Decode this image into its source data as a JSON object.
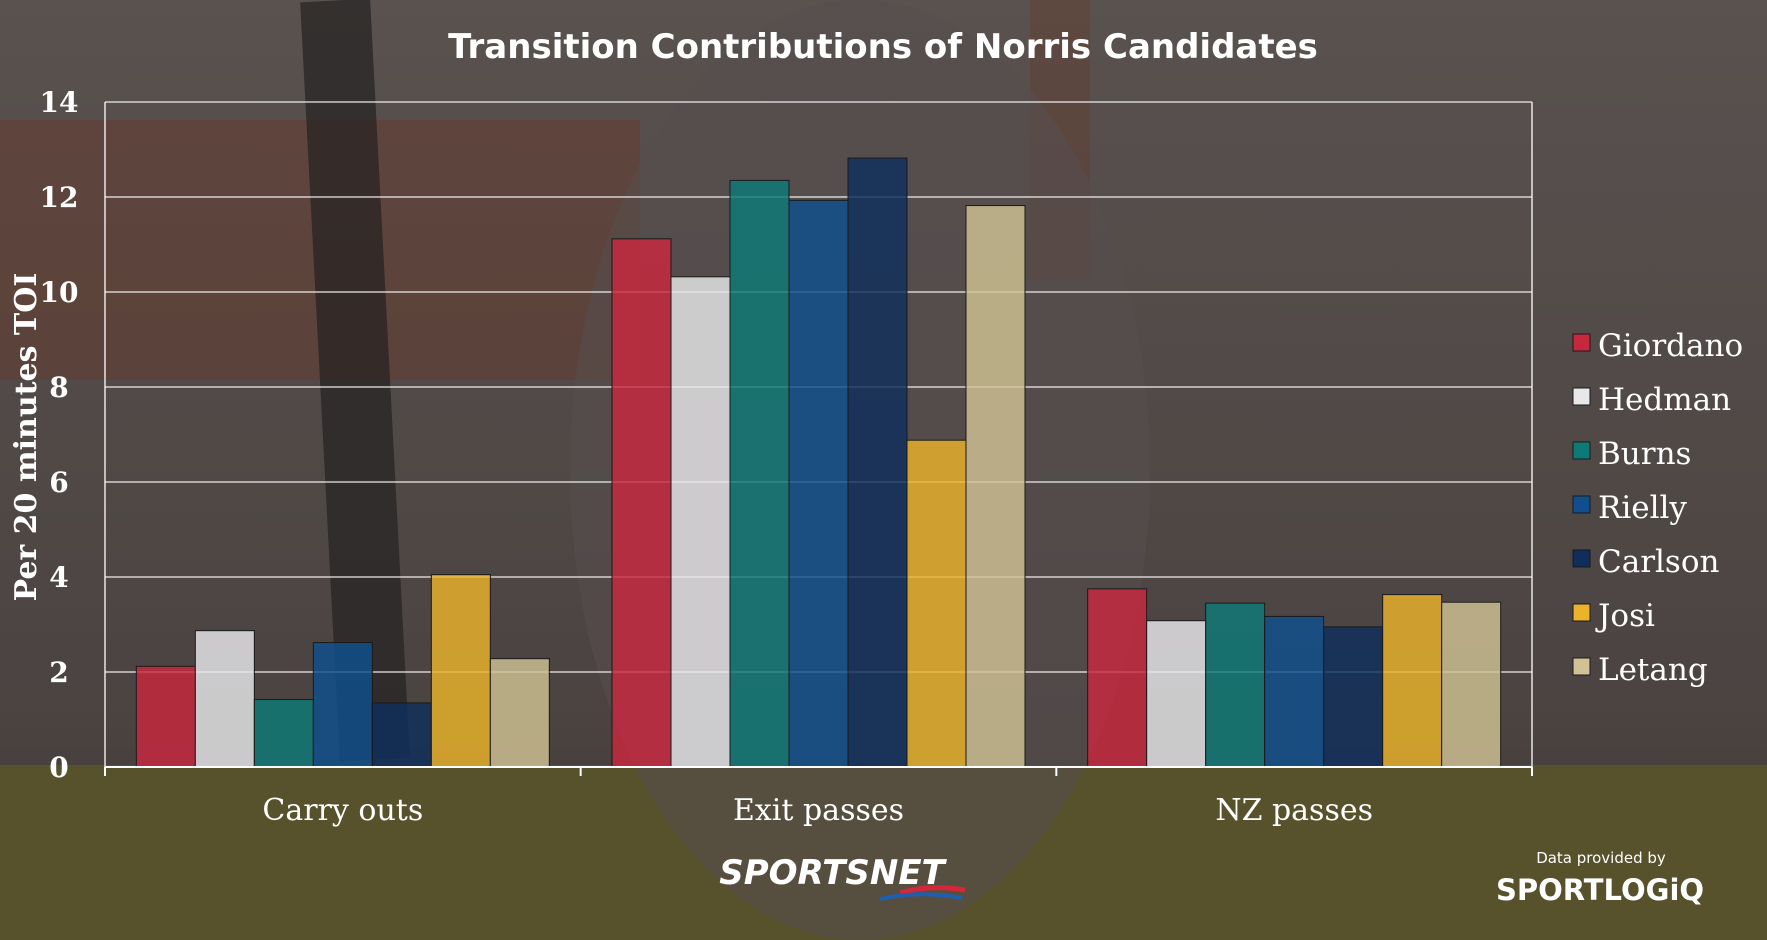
{
  "chart_data": {
    "type": "bar",
    "title": "Transition Contributions of Norris Candidates",
    "ylabel": "Per 20 minutes TOI",
    "xlabel": "",
    "ylim": [
      0,
      14
    ],
    "yticks": [
      0,
      2,
      4,
      6,
      8,
      10,
      12,
      14
    ],
    "grid": true,
    "legend_position": "right",
    "categories": [
      "Carry outs",
      "Exit passes",
      "NZ passes"
    ],
    "series": [
      {
        "name": "Giordano",
        "color": "#c8283e",
        "values": [
          2.12,
          11.12,
          3.75
        ]
      },
      {
        "name": "Hedman",
        "color": "#e8e8ea",
        "values": [
          2.87,
          10.32,
          3.08
        ]
      },
      {
        "name": "Burns",
        "color": "#0e7a78",
        "values": [
          1.42,
          12.35,
          3.45
        ]
      },
      {
        "name": "Rielly",
        "color": "#0f4f8e",
        "values": [
          2.62,
          11.93,
          3.17
        ]
      },
      {
        "name": "Carlson",
        "color": "#0f2e5c",
        "values": [
          1.35,
          12.82,
          2.95
        ]
      },
      {
        "name": "Josi",
        "color": "#eab32a",
        "values": [
          4.05,
          6.88,
          3.63
        ]
      },
      {
        "name": "Letang",
        "color": "#d0c294",
        "values": [
          2.28,
          11.82,
          3.47
        ]
      }
    ]
  },
  "branding": {
    "sportsnet": "SPORTSNET",
    "data_provided_by": "Data provided by",
    "sportlogiq": "SPORTLOGiQ"
  },
  "colors": {
    "background": "#5a4f4b",
    "grid": "#ffffff",
    "text": "#ffffff"
  }
}
